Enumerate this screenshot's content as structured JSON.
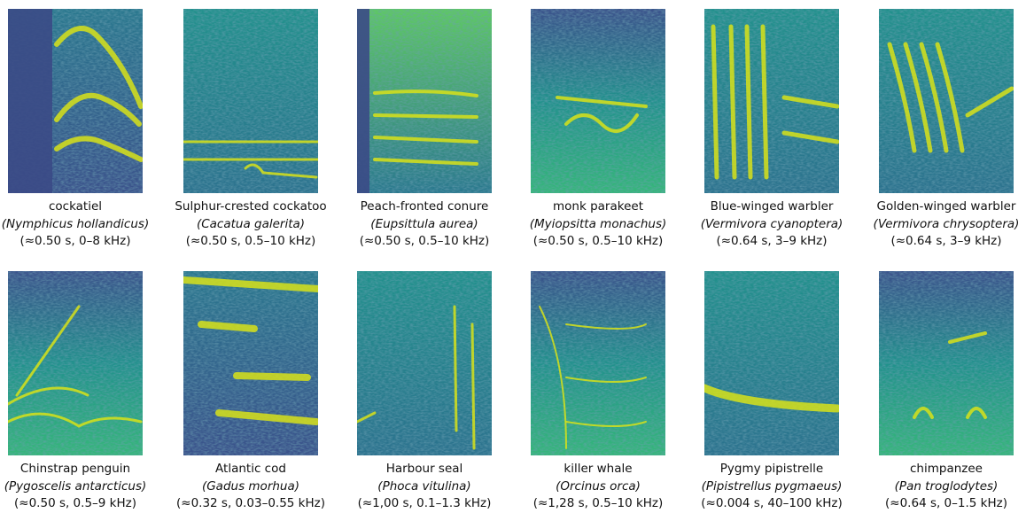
{
  "panels": [
    {
      "name": "cockatiel",
      "species": "(Nymphicus hollandicus)",
      "info": "(≈0.50 s, 0–8 kHz)"
    },
    {
      "name": "Sulphur-crested cockatoo",
      "species": "(Cacatua galerita)",
      "info": "(≈0.50 s, 0.5–10 kHz)"
    },
    {
      "name": "Peach-fronted conure",
      "species": "(Eupsittula aurea)",
      "info": "(≈0.50 s, 0.5–10 kHz)"
    },
    {
      "name": "monk parakeet",
      "species": "(Myiopsitta monachus)",
      "info": "(≈0.50 s, 0.5–10 kHz)"
    },
    {
      "name": "Blue-winged warbler",
      "species": "(Vermivora cyanoptera)",
      "info": "(≈0.64 s, 3–9 kHz)"
    },
    {
      "name": "Golden-winged warbler",
      "species": "(Vermivora chrysoptera)",
      "info": "(≈0.64 s, 3–9 kHz)"
    },
    {
      "name": "Chinstrap penguin",
      "species": "(Pygoscelis antarcticus)",
      "info": "(≈0.50 s, 0.5–9 kHz)"
    },
    {
      "name": "Atlantic cod",
      "species": "(Gadus morhua)",
      "info": "(≈0.32 s, 0.03–0.55 kHz)"
    },
    {
      "name": "Harbour seal",
      "species": "(Phoca vitulina)",
      "info": "(≈1,00 s, 0.1–1.3 kHz)"
    },
    {
      "name": "killer whale",
      "species": "(Orcinus orca)",
      "info": "(≈1,28 s, 0.5–10 kHz)"
    },
    {
      "name": "Pygmy pipistrelle",
      "species": "(Pipistrellus pygmaeus)",
      "info": "(≈0.004 s, 40–100 kHz)"
    },
    {
      "name": "chimpanzee",
      "species": "(Pan troglodytes)",
      "info": "(≈0.64 s, 0–1.5 kHz)"
    }
  ]
}
